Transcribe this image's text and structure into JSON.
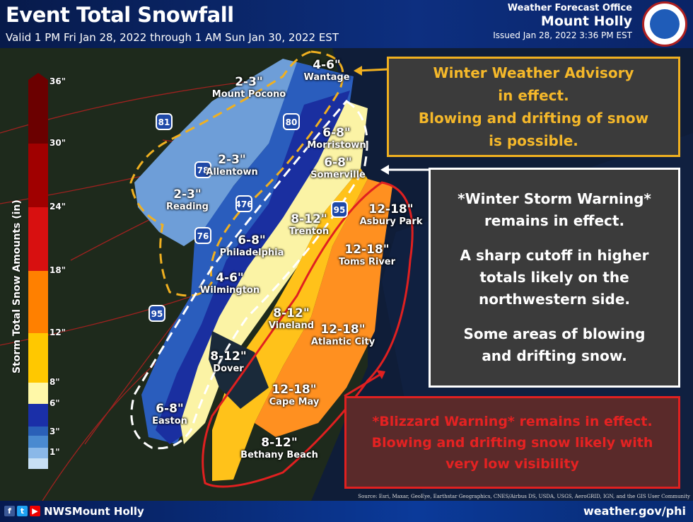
{
  "header": {
    "title": "Event Total Snowfall",
    "valid": "Valid 1 PM Fri Jan 28, 2022 through 1 AM Sun Jan 30, 2022 EST",
    "office_line1": "Weather Forecast Office",
    "office_line2": "Mount Holly",
    "issued": "Issued Jan 28, 2022 3:36 PM EST",
    "logo_text": "NATIONAL WEATHER SERVICE"
  },
  "legend": {
    "title": "Storm Total Snow Amounts (in)",
    "ticks": [
      "36\"",
      "30\"",
      "24\"",
      "18\"",
      "12\"",
      "8\"",
      "6\"",
      "3\"",
      "1\""
    ],
    "colors": [
      "#6b0000",
      "#a00000",
      "#d81010",
      "#ff8000",
      "#ffc800",
      "#fff8a8",
      "#1a2fa8",
      "#2a60b8",
      "#4a8ad0",
      "#8ab8e8",
      "#c8e0f5"
    ]
  },
  "amounts": [
    {
      "amount": "4-6\"",
      "city": "Wantage"
    },
    {
      "amount": "2-3\"",
      "city": "Mount Pocono"
    },
    {
      "amount": "6-8\"",
      "city": "Morristown"
    },
    {
      "amount": "2-3\"",
      "city": "Allentown"
    },
    {
      "amount": "6-8\"",
      "city": "Somerville"
    },
    {
      "amount": "2-3\"",
      "city": "Reading"
    },
    {
      "amount": "8-12\"",
      "city": "Trenton"
    },
    {
      "amount": "12-18\"",
      "city": "Asbury Park"
    },
    {
      "amount": "6-8\"",
      "city": "Philadelphia"
    },
    {
      "amount": "12-18\"",
      "city": "Toms River"
    },
    {
      "amount": "4-6\"",
      "city": "Wilmington"
    },
    {
      "amount": "8-12\"",
      "city": "Vineland"
    },
    {
      "amount": "12-18\"",
      "city": "Atlantic City"
    },
    {
      "amount": "8-12\"",
      "city": "Dover"
    },
    {
      "amount": "12-18\"",
      "city": "Cape May"
    },
    {
      "amount": "6-8\"",
      "city": "Easton"
    },
    {
      "amount": "8-12\"",
      "city": "Bethany Beach"
    }
  ],
  "highways": [
    "81",
    "78",
    "80",
    "476",
    "76",
    "95",
    "95"
  ],
  "callouts": {
    "advisory": [
      "Winter Weather Advisory",
      "in effect.",
      "Blowing and drifting of snow",
      "is possible."
    ],
    "storm": [
      "*Winter Storm Warning*",
      "remains in effect.",
      "A sharp cutoff in higher",
      "totals likely on the",
      "northwestern side.",
      "Some areas of blowing",
      "and drifting snow."
    ],
    "blizzard": [
      "*Blizzard Warning* remains in effect.",
      "Blowing and drifting snow likely with",
      "very low visibility"
    ]
  },
  "colors": {
    "advisory": "#f0b020",
    "storm": "#ffffff",
    "blizzard": "#e02020"
  },
  "source": "Source: Esri, Maxar, GeoEye, Earthstar Geographics, CNES/Airbus DS, USDA, USGS, AeroGRID, IGN, and the GIS User Community",
  "footer": {
    "icons": [
      "facebook-icon",
      "twitter-icon",
      "youtube-icon"
    ],
    "handle": "NWSMount Holly",
    "site": "weather.gov/phi"
  }
}
